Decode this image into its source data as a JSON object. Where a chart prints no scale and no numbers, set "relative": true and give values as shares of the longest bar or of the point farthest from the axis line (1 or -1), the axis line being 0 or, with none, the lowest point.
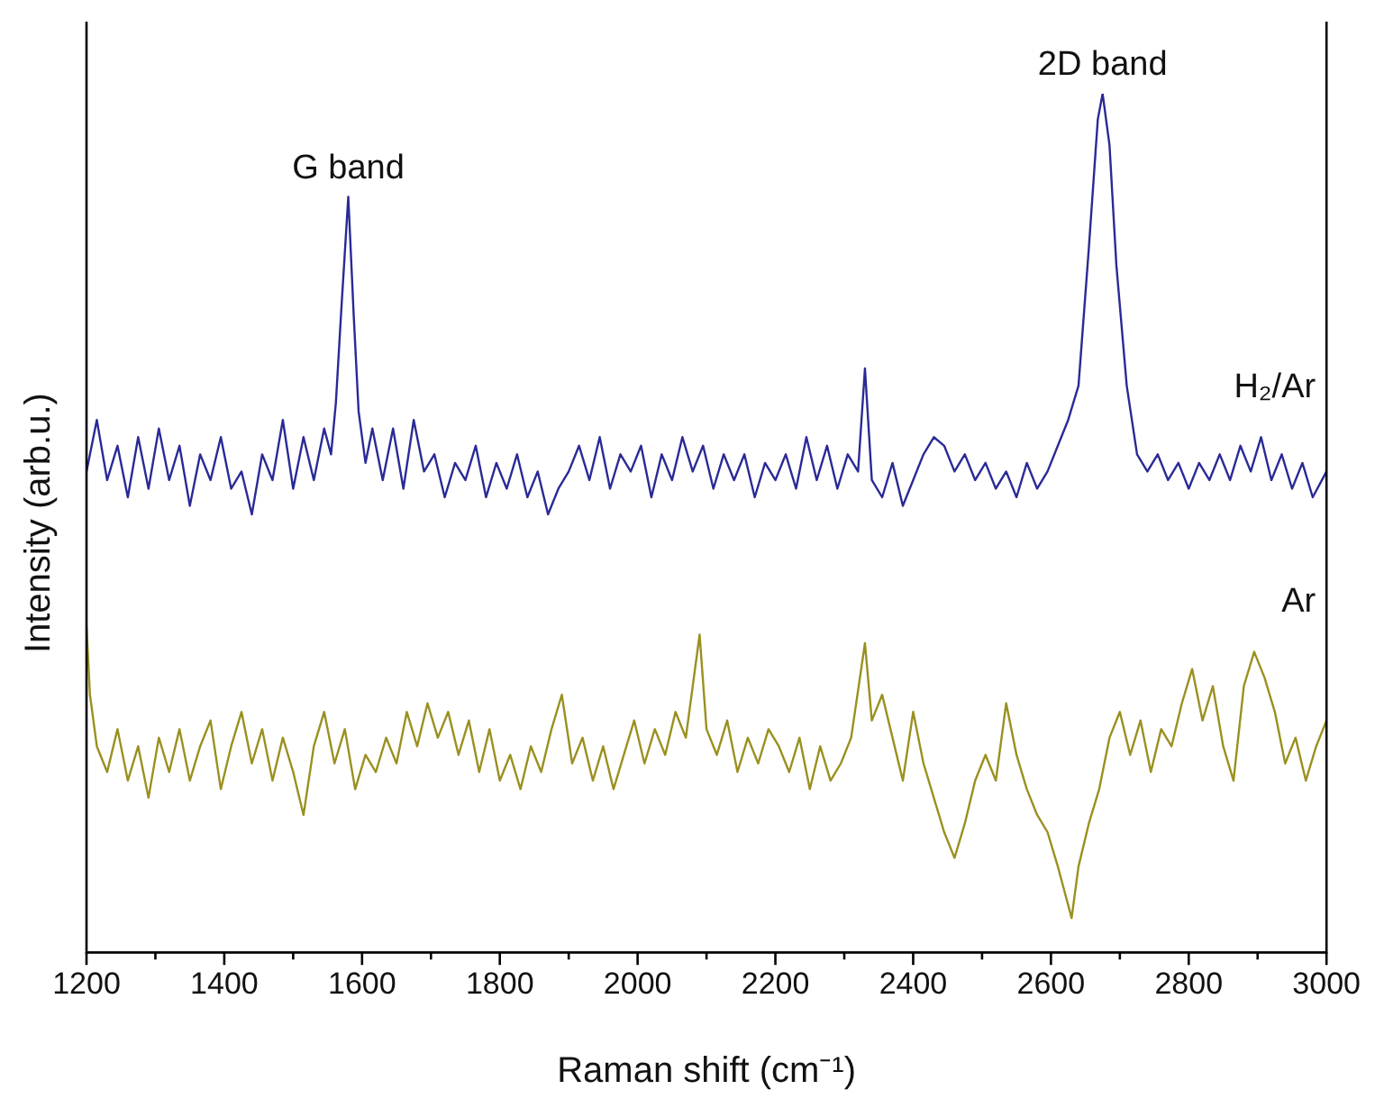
{
  "chart_data": {
    "type": "line",
    "relative": true,
    "xlabel": "Raman shift (cm⁻¹)",
    "ylabel": "Intensity (arb.u.)",
    "xlim": [
      1200,
      3000
    ],
    "xticks": [
      1200,
      {
        "value": 1300,
        "label": null
      },
      1400,
      {
        "value": 1500,
        "label": null
      },
      1600,
      {
        "value": 1700,
        "label": null
      },
      1800,
      {
        "value": 1900,
        "label": null
      },
      2000,
      {
        "value": 2100,
        "label": null
      },
      2200,
      {
        "value": 2300,
        "label": null
      },
      2400,
      {
        "value": 2500,
        "label": null
      },
      2600,
      {
        "value": 2700,
        "label": null
      },
      2800,
      {
        "value": 2900,
        "label": null
      },
      3000
    ],
    "grid": false,
    "legend": false,
    "marker": "none",
    "line_style": "solid",
    "annotations": [
      {
        "text": "G band",
        "x": 1580,
        "y": 0.88
      },
      {
        "text": "2D band",
        "x": 2675,
        "y": 1.0
      }
    ],
    "series": [
      {
        "name": "H₂/Ar",
        "color": "#2a2a96",
        "x": [
          1200,
          1215,
          1230,
          1245,
          1260,
          1275,
          1290,
          1305,
          1320,
          1335,
          1350,
          1365,
          1380,
          1395,
          1410,
          1425,
          1440,
          1455,
          1470,
          1485,
          1500,
          1515,
          1530,
          1545,
          1555,
          1562,
          1570,
          1580,
          1588,
          1595,
          1605,
          1615,
          1630,
          1645,
          1660,
          1675,
          1690,
          1705,
          1720,
          1735,
          1750,
          1765,
          1780,
          1795,
          1810,
          1825,
          1840,
          1855,
          1870,
          1885,
          1900,
          1915,
          1930,
          1945,
          1960,
          1975,
          1990,
          2005,
          2020,
          2035,
          2050,
          2065,
          2080,
          2095,
          2110,
          2125,
          2140,
          2155,
          2170,
          2185,
          2200,
          2215,
          2230,
          2245,
          2260,
          2275,
          2290,
          2305,
          2320,
          2330,
          2340,
          2355,
          2370,
          2385,
          2400,
          2415,
          2430,
          2445,
          2460,
          2475,
          2490,
          2505,
          2520,
          2535,
          2550,
          2565,
          2580,
          2595,
          2610,
          2625,
          2640,
          2655,
          2668,
          2675,
          2685,
          2695,
          2710,
          2725,
          2740,
          2755,
          2770,
          2785,
          2800,
          2815,
          2830,
          2845,
          2860,
          2875,
          2890,
          2905,
          2920,
          2935,
          2950,
          2965,
          2980,
          3000
        ],
        "values": [
          0.56,
          0.62,
          0.55,
          0.59,
          0.53,
          0.6,
          0.54,
          0.61,
          0.55,
          0.59,
          0.52,
          0.58,
          0.55,
          0.6,
          0.54,
          0.56,
          0.51,
          0.58,
          0.55,
          0.62,
          0.54,
          0.6,
          0.55,
          0.61,
          0.58,
          0.64,
          0.75,
          0.88,
          0.74,
          0.63,
          0.57,
          0.61,
          0.55,
          0.61,
          0.54,
          0.62,
          0.56,
          0.58,
          0.53,
          0.57,
          0.55,
          0.59,
          0.53,
          0.57,
          0.54,
          0.58,
          0.53,
          0.56,
          0.51,
          0.54,
          0.56,
          0.59,
          0.55,
          0.6,
          0.54,
          0.58,
          0.56,
          0.59,
          0.53,
          0.58,
          0.55,
          0.6,
          0.56,
          0.59,
          0.54,
          0.58,
          0.55,
          0.58,
          0.53,
          0.57,
          0.55,
          0.58,
          0.54,
          0.6,
          0.55,
          0.59,
          0.54,
          0.58,
          0.56,
          0.68,
          0.55,
          0.53,
          0.57,
          0.52,
          0.55,
          0.58,
          0.6,
          0.59,
          0.56,
          0.58,
          0.55,
          0.57,
          0.54,
          0.56,
          0.53,
          0.57,
          0.54,
          0.56,
          0.59,
          0.62,
          0.66,
          0.82,
          0.97,
          1.0,
          0.94,
          0.8,
          0.66,
          0.58,
          0.56,
          0.58,
          0.55,
          0.57,
          0.54,
          0.57,
          0.55,
          0.58,
          0.55,
          0.59,
          0.56,
          0.6,
          0.55,
          0.58,
          0.54,
          0.57,
          0.53,
          0.56
        ]
      },
      {
        "name": "Ar",
        "color": "#9a9020",
        "x": [
          1200,
          1205,
          1215,
          1230,
          1245,
          1260,
          1275,
          1290,
          1305,
          1320,
          1335,
          1350,
          1365,
          1380,
          1395,
          1410,
          1425,
          1440,
          1455,
          1470,
          1485,
          1500,
          1515,
          1530,
          1545,
          1560,
          1575,
          1590,
          1605,
          1620,
          1635,
          1650,
          1665,
          1680,
          1695,
          1710,
          1725,
          1740,
          1755,
          1770,
          1785,
          1800,
          1815,
          1830,
          1845,
          1860,
          1875,
          1890,
          1905,
          1920,
          1935,
          1950,
          1965,
          1980,
          1995,
          2010,
          2025,
          2040,
          2055,
          2070,
          2090,
          2100,
          2115,
          2130,
          2145,
          2160,
          2175,
          2190,
          2205,
          2220,
          2235,
          2250,
          2265,
          2280,
          2295,
          2310,
          2330,
          2340,
          2355,
          2370,
          2385,
          2400,
          2415,
          2430,
          2445,
          2460,
          2475,
          2490,
          2505,
          2520,
          2535,
          2550,
          2565,
          2580,
          2595,
          2610,
          2620,
          2630,
          2640,
          2655,
          2670,
          2685,
          2700,
          2715,
          2730,
          2745,
          2760,
          2775,
          2790,
          2805,
          2820,
          2835,
          2850,
          2865,
          2880,
          2895,
          2910,
          2925,
          2940,
          2955,
          2970,
          2985,
          3000
        ],
        "values": [
          0.38,
          0.3,
          0.24,
          0.21,
          0.26,
          0.2,
          0.24,
          0.18,
          0.25,
          0.21,
          0.26,
          0.2,
          0.24,
          0.27,
          0.19,
          0.24,
          0.28,
          0.22,
          0.26,
          0.2,
          0.25,
          0.21,
          0.16,
          0.24,
          0.28,
          0.22,
          0.26,
          0.19,
          0.23,
          0.21,
          0.25,
          0.22,
          0.28,
          0.24,
          0.29,
          0.25,
          0.28,
          0.23,
          0.27,
          0.21,
          0.26,
          0.2,
          0.23,
          0.19,
          0.24,
          0.21,
          0.26,
          0.3,
          0.22,
          0.25,
          0.2,
          0.24,
          0.19,
          0.23,
          0.27,
          0.22,
          0.26,
          0.23,
          0.28,
          0.25,
          0.37,
          0.26,
          0.23,
          0.27,
          0.21,
          0.25,
          0.22,
          0.26,
          0.24,
          0.21,
          0.25,
          0.19,
          0.24,
          0.2,
          0.22,
          0.25,
          0.36,
          0.27,
          0.3,
          0.25,
          0.2,
          0.28,
          0.22,
          0.18,
          0.14,
          0.11,
          0.15,
          0.2,
          0.23,
          0.2,
          0.29,
          0.23,
          0.19,
          0.16,
          0.14,
          0.1,
          0.07,
          0.04,
          0.1,
          0.15,
          0.19,
          0.25,
          0.28,
          0.23,
          0.27,
          0.21,
          0.26,
          0.24,
          0.29,
          0.33,
          0.27,
          0.31,
          0.24,
          0.2,
          0.31,
          0.35,
          0.32,
          0.28,
          0.22,
          0.25,
          0.2,
          0.24,
          0.27
        ]
      }
    ]
  }
}
